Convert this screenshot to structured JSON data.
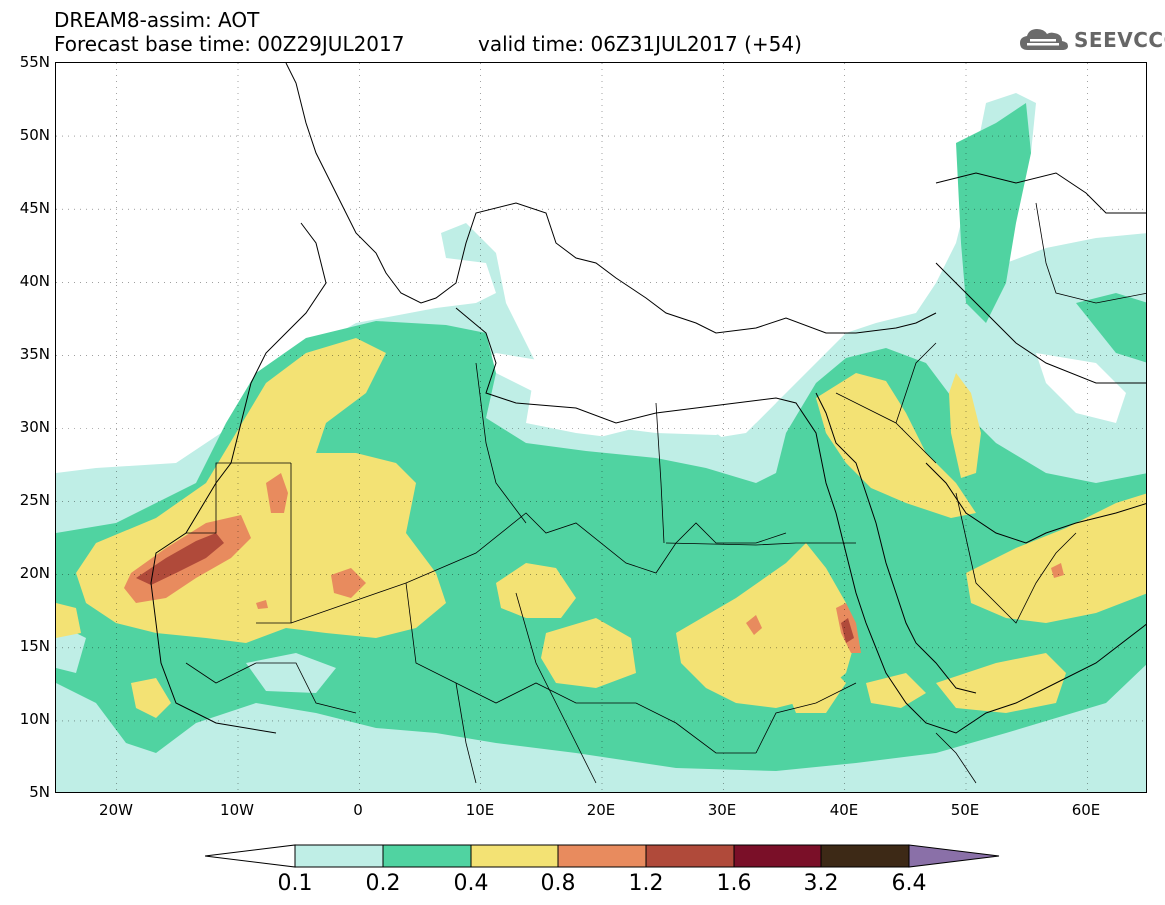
{
  "header": {
    "product": "DREAM8-assim: AOT",
    "base_time": "Forecast base time: 00Z29JUL2017",
    "valid_time": "valid time: 06Z31JUL2017 (+54)"
  },
  "logo": {
    "text": "SEEVCCC",
    "icon": "cloud-icon"
  },
  "map": {
    "variable": "AOT",
    "lat_labels": [
      "55N",
      "50N",
      "45N",
      "40N",
      "35N",
      "30N",
      "25N",
      "20N",
      "15N",
      "10N",
      "5N"
    ],
    "lon_labels": [
      "20W",
      "10W",
      "0",
      "10E",
      "20E",
      "30E",
      "40E",
      "50E",
      "60E"
    ],
    "extent": {
      "lon_min": -25,
      "lon_max": 65,
      "lat_min": 5,
      "lat_max": 55
    },
    "grid": "dotted"
  },
  "colorbar": {
    "ticks": [
      "0.1",
      "0.2",
      "0.4",
      "0.8",
      "1.2",
      "1.6",
      "3.2",
      "6.4"
    ],
    "colors": [
      "#ffffff",
      "#bfeee6",
      "#50d3a1",
      "#f3e274",
      "#e88b5e",
      "#b04a3a",
      "#7a0f28",
      "#3d2916",
      "#8a70a8"
    ],
    "extend": "both"
  }
}
